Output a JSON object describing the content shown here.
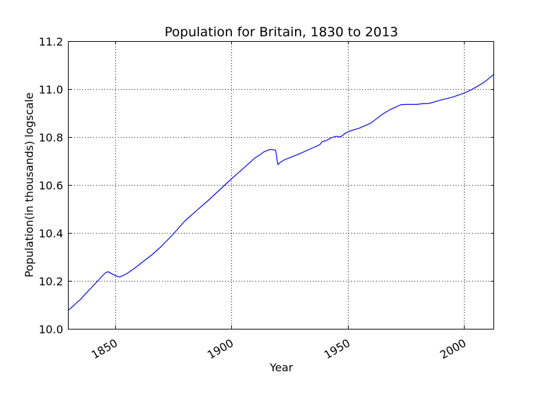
{
  "chart_data": {
    "type": "line",
    "title": "Population for Britain, 1830 to 2013",
    "xlabel": "Year",
    "ylabel": "Population(in thousands) logscale",
    "xlim": [
      1830,
      2013
    ],
    "ylim": [
      10.0,
      11.2
    ],
    "x_ticks": [
      1850,
      1900,
      1950,
      2000
    ],
    "x_tick_labels": [
      "1850",
      "1900",
      "1950",
      "2000"
    ],
    "y_ticks": [
      10.0,
      10.2,
      10.4,
      10.6,
      10.8,
      11.0,
      11.2
    ],
    "y_tick_labels": [
      "10.0",
      "10.2",
      "10.4",
      "10.6",
      "10.8",
      "11.0",
      "11.2"
    ],
    "grid": true,
    "line_color": "#0000ff",
    "series": [
      {
        "x": [
          1830,
          1835,
          1840,
          1843,
          1846,
          1847,
          1850,
          1852,
          1855,
          1858,
          1862,
          1866,
          1870,
          1875,
          1880,
          1885,
          1890,
          1895,
          1900,
          1905,
          1910,
          1912,
          1914,
          1916,
          1917,
          1919,
          1920,
          1921,
          1923,
          1925,
          1930,
          1935,
          1938,
          1939,
          1941,
          1943,
          1945,
          1947,
          1949,
          1951,
          1955,
          1960,
          1962,
          1965,
          1968,
          1970,
          1973,
          1975,
          1980,
          1982,
          1985,
          1990,
          1995,
          2000,
          2003,
          2005,
          2008,
          2010,
          2013
        ],
        "y": [
          10.078,
          10.122,
          10.174,
          10.205,
          10.235,
          10.238,
          10.222,
          10.216,
          10.23,
          10.25,
          10.28,
          10.31,
          10.345,
          10.395,
          10.45,
          10.493,
          10.535,
          10.58,
          10.625,
          10.668,
          10.712,
          10.724,
          10.738,
          10.746,
          10.748,
          10.745,
          10.685,
          10.694,
          10.706,
          10.713,
          10.733,
          10.755,
          10.768,
          10.78,
          10.786,
          10.797,
          10.803,
          10.8,
          10.816,
          10.825,
          10.837,
          10.858,
          10.873,
          10.895,
          10.913,
          10.922,
          10.935,
          10.936,
          10.936,
          10.939,
          10.94,
          10.954,
          10.966,
          10.983,
          10.996,
          11.007,
          11.024,
          11.038,
          11.063
        ]
      }
    ]
  }
}
